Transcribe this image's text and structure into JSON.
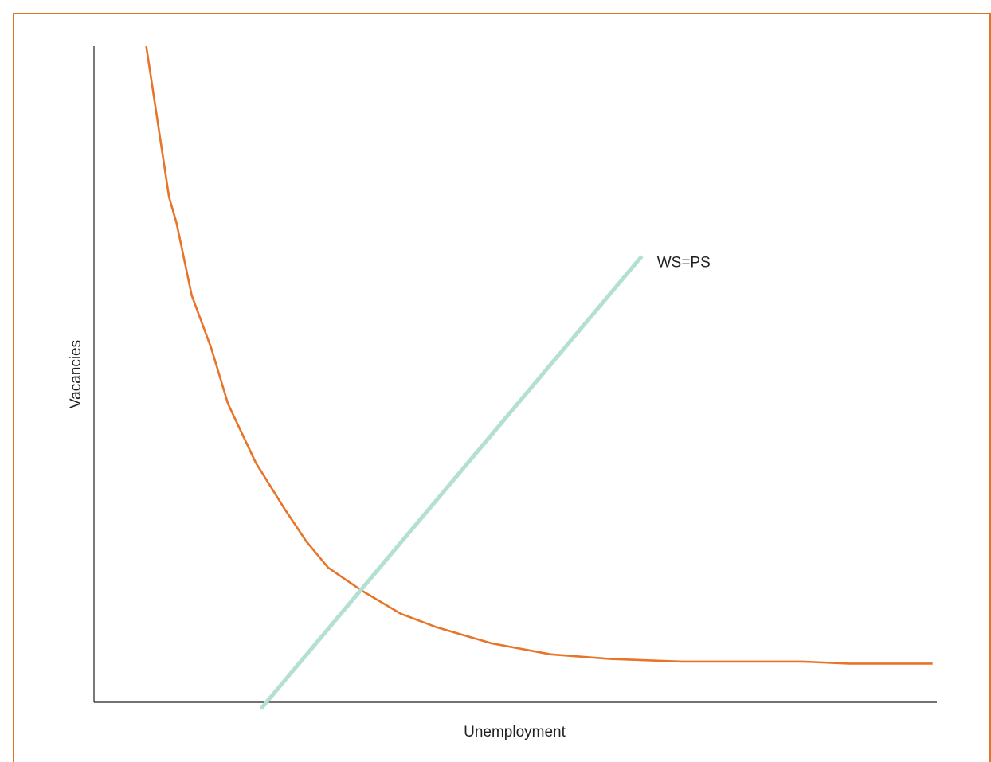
{
  "colors": {
    "frame_border": "#e07528",
    "beveridge_curve": "#e8742a",
    "ws_ps_line": "#b3e0d2",
    "axis": "#231f20"
  },
  "chart_data": {
    "type": "line",
    "title": "",
    "xlabel": "Unemployment",
    "ylabel": "Vacancies",
    "xlim": [
      0,
      100
    ],
    "ylim": [
      0,
      100
    ],
    "grid": false,
    "ticks": false,
    "series": [
      {
        "name": "",
        "color": "#e8742a",
        "x": [
          6.2,
          8.9,
          9.8,
          11.6,
          13.9,
          15.9,
          19.2,
          22.6,
          25.2,
          27.8,
          31.8,
          36.4,
          40.5,
          47.1,
          54.2,
          61.3,
          69.8,
          79.2,
          81.6,
          84.1,
          89.5,
          94.5,
          99.5
        ],
        "y": [
          100,
          77,
          73,
          62,
          54,
          45.5,
          36.5,
          29.5,
          24.5,
          20.5,
          17,
          13.5,
          11.5,
          9,
          7.3,
          6.6,
          6.2,
          6.2,
          6.2,
          6.2,
          5.9,
          5.9,
          5.9
        ]
      },
      {
        "name": "WS=PS",
        "color": "#b3e0d2",
        "x": [
          19.8,
          65.0
        ],
        "y": [
          -1.0,
          68.0
        ]
      }
    ],
    "annotations": [
      {
        "text": "WS=PS",
        "x": 66.8,
        "y": 68.0
      }
    ]
  }
}
